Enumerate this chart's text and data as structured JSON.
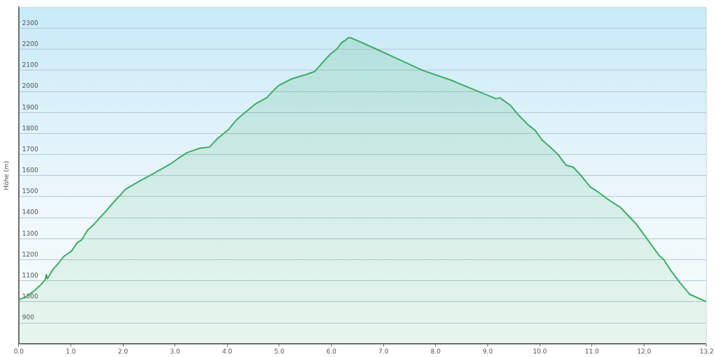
{
  "chart_data": {
    "type": "area",
    "ylabel": "Höhe (m)",
    "x": [
      0,
      0.15,
      0.31,
      0.42,
      0.51,
      0.53,
      0.55,
      0.66,
      0.77,
      0.86,
      0.92,
      1.01,
      1.12,
      1.21,
      1.32,
      1.45,
      1.54,
      1.67,
      1.81,
      1.92,
      1.96,
      2.05,
      2.29,
      2.55,
      2.91,
      3.08,
      3.24,
      3.48,
      3.66,
      3.81,
      4.03,
      4.18,
      4.32,
      4.54,
      4.76,
      4.89,
      5.0,
      5.24,
      5.51,
      5.68,
      5.86,
      5.99,
      6.1,
      6.19,
      6.28,
      6.32,
      6.37,
      6.83,
      7.27,
      7.75,
      8.28,
      8.72,
      9.16,
      9.23,
      9.43,
      9.6,
      9.78,
      9.91,
      10.04,
      10.22,
      10.35,
      10.5,
      10.64,
      10.79,
      10.97,
      11.1,
      11.32,
      11.54,
      11.85,
      12.07,
      12.29,
      12.38,
      12.51,
      12.69,
      12.88,
      13.2
    ],
    "series": [
      {
        "color": "#3cac64",
        "values": [
          1010,
          1025,
          1055,
          1080,
          1105,
          1130,
          1110,
          1155,
          1185,
          1215,
          1225,
          1240,
          1280,
          1295,
          1340,
          1370,
          1395,
          1430,
          1470,
          1500,
          1510,
          1535,
          1570,
          1605,
          1655,
          1685,
          1710,
          1730,
          1735,
          1775,
          1820,
          1865,
          1895,
          1940,
          1970,
          2005,
          2030,
          2060,
          2080,
          2095,
          2145,
          2180,
          2200,
          2230,
          2245,
          2255,
          2255,
          2205,
          2155,
          2100,
          2055,
          2010,
          1965,
          1970,
          1935,
          1885,
          1840,
          1815,
          1770,
          1730,
          1700,
          1650,
          1640,
          1600,
          1545,
          1525,
          1485,
          1450,
          1370,
          1295,
          1220,
          1200,
          1150,
          1090,
          1035,
          1000
        ]
      }
    ],
    "xlim": [
      0,
      13.2
    ],
    "xticks": [
      {
        "value": 0,
        "label": "0.0"
      },
      {
        "value": 1,
        "label": "1.0"
      },
      {
        "value": 2,
        "label": "2.0"
      },
      {
        "value": 3,
        "label": "3.0"
      },
      {
        "value": 4,
        "label": "4.0"
      },
      {
        "value": 5,
        "label": "5.0"
      },
      {
        "value": 6,
        "label": "6.0"
      },
      {
        "value": 7,
        "label": "7.0"
      },
      {
        "value": 8,
        "label": "8.0"
      },
      {
        "value": 9,
        "label": "9.0"
      },
      {
        "value": 10,
        "label": "10.0"
      },
      {
        "value": 11,
        "label": "11.0"
      },
      {
        "value": 12,
        "label": "12.0"
      },
      13.2
    ],
    "ylim": [
      800,
      2400
    ],
    "yticks": [
      900,
      1000,
      1100,
      1200,
      1300,
      1400,
      1500,
      1600,
      1700,
      1800,
      1900,
      2000,
      2100,
      2200,
      2300
    ],
    "grid": "y"
  }
}
